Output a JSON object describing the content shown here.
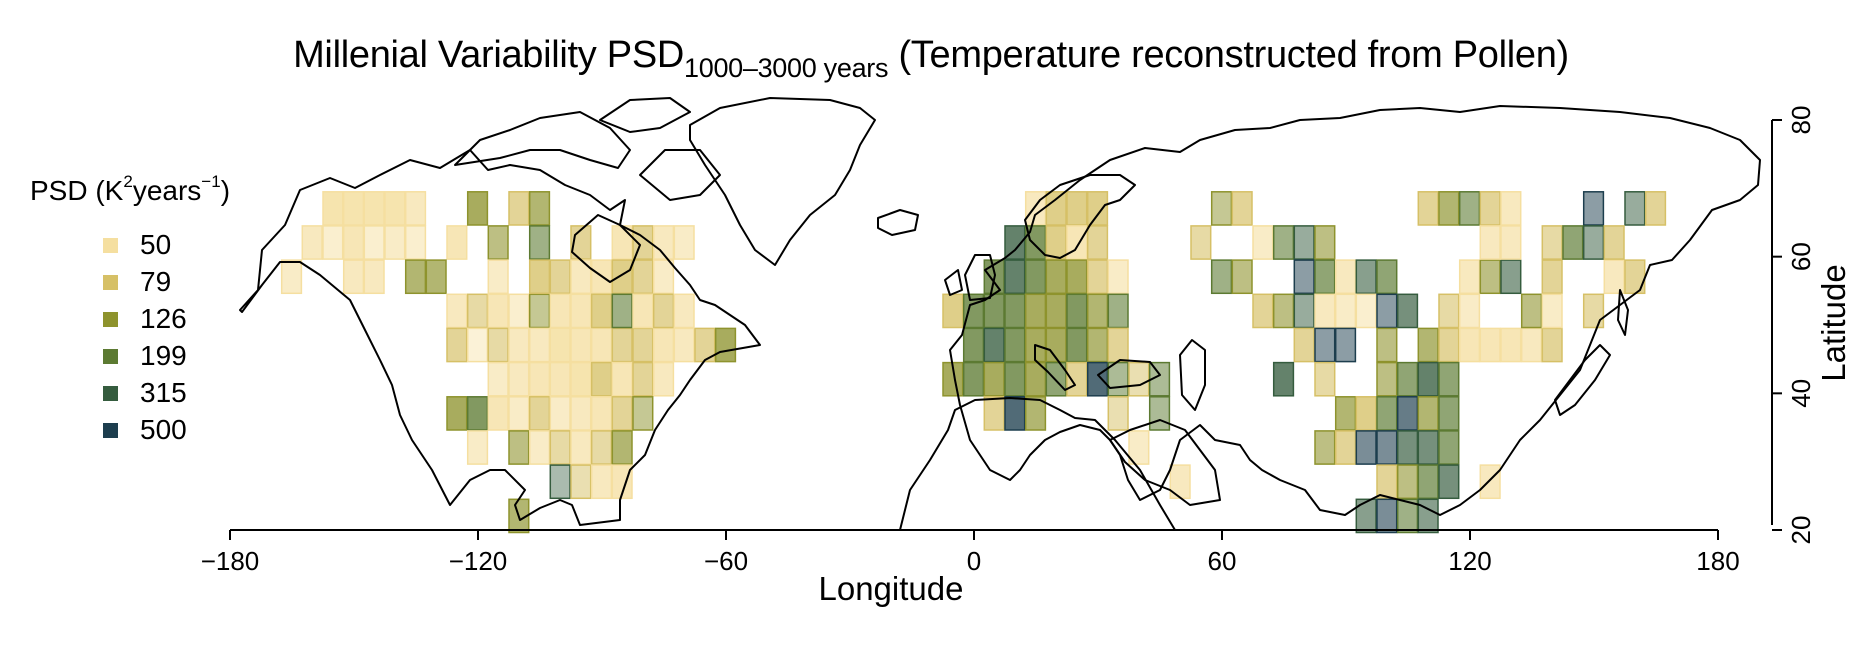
{
  "title": {
    "main": "Millenial Variability PSD",
    "subscript": "1000–3000 years",
    "suffix": "(Temperature reconstructed from Pollen)"
  },
  "legend": {
    "title_pre": "PSD (K",
    "title_sup1": "2",
    "title_mid": "years",
    "title_sup2": "−1",
    "title_post": ")",
    "items": [
      {
        "label": "50",
        "color": "#F5DFA0"
      },
      {
        "label": "79",
        "color": "#D6C066"
      },
      {
        "label": "126",
        "color": "#8E932D"
      },
      {
        "label": "199",
        "color": "#5C7A32"
      },
      {
        "label": "315",
        "color": "#355C3E"
      },
      {
        "label": "500",
        "color": "#1D3E4E"
      }
    ]
  },
  "axes": {
    "xlabel": "Longitude",
    "ylabel": "Latitude",
    "xticks": [
      "−180",
      "−120",
      "−60",
      "0",
      "60",
      "120",
      "180"
    ],
    "yticks": [
      "20",
      "40",
      "60",
      "80"
    ]
  },
  "map_data": {
    "projection": "equirectangular",
    "xlim": [
      -180,
      180
    ],
    "ylim": [
      20,
      80
    ],
    "cell_size_deg": 5,
    "colors": [
      "#F5DFA0",
      "#D6C066",
      "#8E932D",
      "#5C7A32",
      "#355C3E",
      "#1D3E4E"
    ],
    "cells": [
      [
        -155,
        67,
        0,
        1
      ],
      [
        -150,
        67,
        0,
        1
      ],
      [
        -145,
        67,
        0,
        1
      ],
      [
        -140,
        67,
        0,
        1
      ],
      [
        -135,
        67,
        0,
        0.8
      ],
      [
        -160,
        62,
        0,
        0.8
      ],
      [
        -155,
        62,
        0,
        0.6
      ],
      [
        -150,
        62,
        0,
        0.9
      ],
      [
        -145,
        62,
        0,
        0.6
      ],
      [
        -140,
        62,
        0,
        0.7
      ],
      [
        -135,
        62,
        0,
        0.6
      ],
      [
        -125,
        62,
        0,
        0.9
      ],
      [
        -165,
        57,
        0,
        0.7
      ],
      [
        -150,
        57,
        0,
        0.8
      ],
      [
        -145,
        57,
        0,
        0.8
      ],
      [
        -135,
        57,
        2,
        0.8
      ],
      [
        -130,
        57,
        2,
        0.8
      ],
      [
        -125,
        52,
        0,
        0.8
      ],
      [
        -120,
        52,
        1,
        0.7
      ],
      [
        -115,
        52,
        0,
        0.9
      ],
      [
        -110,
        52,
        0,
        0.6
      ],
      [
        -105,
        52,
        2,
        0.6
      ],
      [
        -125,
        47,
        1,
        0.8
      ],
      [
        -120,
        47,
        0,
        0.5
      ],
      [
        -115,
        47,
        1,
        0.7
      ],
      [
        -110,
        47,
        0,
        0.8
      ],
      [
        -105,
        47,
        0,
        0.8
      ],
      [
        -100,
        47,
        0,
        1
      ],
      [
        -95,
        47,
        0,
        0.9
      ],
      [
        -90,
        47,
        0,
        0.9
      ],
      [
        -85,
        47,
        1,
        0.8
      ],
      [
        -80,
        47,
        1,
        0.8
      ],
      [
        -75,
        47,
        0,
        0.9
      ],
      [
        -70,
        47,
        0,
        0.8
      ],
      [
        -65,
        47,
        1,
        0.8
      ],
      [
        -60,
        47,
        2,
        0.9
      ],
      [
        -115,
        42,
        0,
        0.7
      ],
      [
        -110,
        42,
        0,
        0.8
      ],
      [
        -105,
        42,
        0,
        0.9
      ],
      [
        -100,
        42,
        0,
        0.9
      ],
      [
        -95,
        42,
        0,
        1
      ],
      [
        -90,
        42,
        1,
        0.9
      ],
      [
        -85,
        42,
        0,
        0.9
      ],
      [
        -80,
        42,
        1,
        0.8
      ],
      [
        -75,
        42,
        0,
        0.8
      ],
      [
        -125,
        37,
        2,
        0.9
      ],
      [
        -120,
        37,
        3,
        0.9
      ],
      [
        -115,
        37,
        0,
        0.9
      ],
      [
        -110,
        37,
        0,
        0.7
      ],
      [
        -105,
        37,
        1,
        0.8
      ],
      [
        -100,
        37,
        0,
        0.7
      ],
      [
        -95,
        37,
        0,
        0.8
      ],
      [
        -90,
        37,
        0,
        0.9
      ],
      [
        -85,
        37,
        1,
        0.8
      ],
      [
        -80,
        37,
        2,
        0.6
      ],
      [
        -120,
        32,
        0,
        0.7
      ],
      [
        -110,
        32,
        2,
        0.7
      ],
      [
        -105,
        32,
        0,
        0.7
      ],
      [
        -100,
        32,
        1,
        0.7
      ],
      [
        -95,
        32,
        0,
        0.8
      ],
      [
        -90,
        32,
        1,
        0.7
      ],
      [
        -85,
        32,
        2,
        0.8
      ],
      [
        -100,
        27,
        4,
        0.5
      ],
      [
        -95,
        27,
        1,
        0.6
      ],
      [
        -90,
        27,
        0,
        0.8
      ],
      [
        -85,
        27,
        0,
        0.9
      ],
      [
        -110,
        22,
        2,
        0.8
      ],
      [
        -120,
        67,
        2,
        0.9
      ],
      [
        -110,
        67,
        1,
        0.8
      ],
      [
        -105,
        67,
        2,
        0.8
      ],
      [
        -115,
        62,
        2,
        0.7
      ],
      [
        -105,
        62,
        3,
        0.7
      ],
      [
        -95,
        62,
        1,
        0.8
      ],
      [
        -85,
        62,
        0,
        0.9
      ],
      [
        -80,
        62,
        1,
        0.8
      ],
      [
        -75,
        62,
        0,
        0.8
      ],
      [
        -70,
        62,
        0,
        0.7
      ],
      [
        -115,
        57,
        0,
        0.7
      ],
      [
        -105,
        57,
        1,
        0.9
      ],
      [
        -100,
        57,
        1,
        0.8
      ],
      [
        -95,
        57,
        0,
        0.8
      ],
      [
        -90,
        57,
        0,
        0.9
      ],
      [
        -85,
        57,
        1,
        0.9
      ],
      [
        -80,
        57,
        1,
        0.8
      ],
      [
        -75,
        57,
        0,
        0.7
      ],
      [
        -100,
        52,
        0,
        0.9
      ],
      [
        -95,
        52,
        0,
        0.9
      ],
      [
        -90,
        52,
        1,
        0.9
      ],
      [
        -85,
        52,
        3,
        0.7
      ],
      [
        -80,
        52,
        0,
        0.9
      ],
      [
        -75,
        52,
        1,
        0.8
      ],
      [
        -70,
        52,
        0,
        0.8
      ],
      [
        15,
        67,
        0,
        0.8
      ],
      [
        20,
        67,
        1,
        0.9
      ],
      [
        25,
        67,
        1,
        0.9
      ],
      [
        30,
        67,
        1,
        0.9
      ],
      [
        10,
        62,
        4,
        0.9
      ],
      [
        15,
        62,
        3,
        0.9
      ],
      [
        20,
        62,
        1,
        0.9
      ],
      [
        25,
        62,
        0,
        0.9
      ],
      [
        30,
        62,
        1,
        0.8
      ],
      [
        5,
        57,
        3,
        0.9
      ],
      [
        10,
        57,
        4,
        0.9
      ],
      [
        15,
        57,
        3,
        0.9
      ],
      [
        20,
        57,
        2,
        0.9
      ],
      [
        25,
        57,
        2,
        0.9
      ],
      [
        30,
        57,
        1,
        0.8
      ],
      [
        35,
        57,
        0,
        0.7
      ],
      [
        -5,
        52,
        1,
        0.9
      ],
      [
        0,
        52,
        3,
        0.9
      ],
      [
        5,
        52,
        3,
        0.9
      ],
      [
        10,
        52,
        3,
        0.9
      ],
      [
        15,
        52,
        2,
        0.9
      ],
      [
        20,
        52,
        2,
        0.9
      ],
      [
        25,
        52,
        3,
        0.9
      ],
      [
        30,
        52,
        2,
        0.8
      ],
      [
        35,
        52,
        3,
        0.7
      ],
      [
        0,
        47,
        3,
        0.9
      ],
      [
        5,
        47,
        4,
        0.9
      ],
      [
        10,
        47,
        3,
        0.9
      ],
      [
        15,
        47,
        2,
        0.9
      ],
      [
        20,
        47,
        2,
        0.9
      ],
      [
        25,
        47,
        3,
        0.9
      ],
      [
        30,
        47,
        2,
        0.8
      ],
      [
        35,
        47,
        1,
        0.8
      ],
      [
        -5,
        42,
        2,
        0.9
      ],
      [
        0,
        42,
        3,
        0.9
      ],
      [
        5,
        42,
        2,
        0.9
      ],
      [
        10,
        42,
        3,
        0.9
      ],
      [
        15,
        42,
        2,
        0.9
      ],
      [
        20,
        42,
        3,
        0.8
      ],
      [
        25,
        42,
        1,
        0.8
      ],
      [
        30,
        42,
        5,
        0.9
      ],
      [
        35,
        42,
        3,
        0.6
      ],
      [
        40,
        42,
        1,
        0.6
      ],
      [
        45,
        42,
        3,
        0.6
      ],
      [
        5,
        37,
        1,
        0.8
      ],
      [
        10,
        37,
        5,
        0.9
      ],
      [
        15,
        37,
        2,
        0.8
      ],
      [
        35,
        37,
        1,
        0.6
      ],
      [
        45,
        37,
        3,
        0.6
      ],
      [
        40,
        32,
        0,
        0.7
      ],
      [
        50,
        27,
        0,
        0.8
      ],
      [
        55,
        62,
        1,
        0.7
      ],
      [
        60,
        67,
        2,
        0.6
      ],
      [
        65,
        67,
        1,
        0.8
      ],
      [
        70,
        62,
        0,
        0.7
      ],
      [
        75,
        62,
        3,
        0.7
      ],
      [
        80,
        62,
        4,
        0.6
      ],
      [
        85,
        62,
        2,
        0.7
      ],
      [
        60,
        57,
        3,
        0.7
      ],
      [
        65,
        57,
        2,
        0.7
      ],
      [
        80,
        57,
        5,
        0.6
      ],
      [
        85,
        57,
        3,
        0.8
      ],
      [
        90,
        57,
        0,
        0.8
      ],
      [
        95,
        57,
        4,
        0.7
      ],
      [
        100,
        57,
        3,
        0.8
      ],
      [
        70,
        52,
        1,
        0.8
      ],
      [
        75,
        52,
        2,
        0.7
      ],
      [
        80,
        52,
        4,
        0.6
      ],
      [
        85,
        52,
        0,
        0.8
      ],
      [
        90,
        52,
        0,
        0.7
      ],
      [
        95,
        52,
        0,
        0.6
      ],
      [
        100,
        52,
        5,
        0.6
      ],
      [
        105,
        52,
        4,
        0.8
      ],
      [
        80,
        47,
        1,
        0.8
      ],
      [
        85,
        47,
        5,
        0.6
      ],
      [
        90,
        47,
        5,
        0.6
      ],
      [
        100,
        47,
        2,
        0.7
      ],
      [
        110,
        47,
        2,
        0.8
      ],
      [
        115,
        47,
        1,
        0.8
      ],
      [
        120,
        47,
        0,
        0.9
      ],
      [
        125,
        47,
        0,
        0.9
      ],
      [
        130,
        47,
        0,
        0.9
      ],
      [
        135,
        47,
        0,
        0.8
      ],
      [
        140,
        47,
        1,
        0.8
      ],
      [
        75,
        42,
        4,
        0.9
      ],
      [
        85,
        42,
        1,
        0.7
      ],
      [
        100,
        42,
        2,
        0.7
      ],
      [
        105,
        42,
        3,
        0.8
      ],
      [
        110,
        42,
        4,
        0.9
      ],
      [
        115,
        42,
        3,
        0.8
      ],
      [
        90,
        37,
        2,
        0.8
      ],
      [
        95,
        37,
        1,
        0.9
      ],
      [
        100,
        37,
        3,
        0.8
      ],
      [
        105,
        37,
        5,
        0.8
      ],
      [
        110,
        37,
        2,
        0.8
      ],
      [
        115,
        37,
        3,
        0.8
      ],
      [
        85,
        32,
        2,
        0.7
      ],
      [
        90,
        32,
        1,
        0.8
      ],
      [
        95,
        32,
        5,
        0.7
      ],
      [
        100,
        32,
        5,
        0.7
      ],
      [
        105,
        32,
        4,
        0.8
      ],
      [
        110,
        32,
        4,
        0.8
      ],
      [
        115,
        32,
        3,
        0.8
      ],
      [
        100,
        27,
        1,
        0.8
      ],
      [
        105,
        27,
        2,
        0.7
      ],
      [
        110,
        27,
        3,
        0.8
      ],
      [
        115,
        27,
        4,
        0.8
      ],
      [
        125,
        27,
        0,
        0.8
      ],
      [
        95,
        22,
        4,
        0.7
      ],
      [
        100,
        22,
        5,
        0.7
      ],
      [
        105,
        22,
        3,
        0.7
      ],
      [
        110,
        22,
        4,
        0.7
      ],
      [
        110,
        67,
        1,
        0.8
      ],
      [
        115,
        67,
        2,
        0.8
      ],
      [
        120,
        67,
        3,
        0.7
      ],
      [
        125,
        67,
        1,
        0.8
      ],
      [
        130,
        67,
        0,
        0.8
      ],
      [
        150,
        67,
        5,
        0.6
      ],
      [
        160,
        67,
        4,
        0.6
      ],
      [
        165,
        67,
        1,
        0.8
      ],
      [
        120,
        57,
        0,
        0.8
      ],
      [
        125,
        57,
        2,
        0.7
      ],
      [
        130,
        57,
        4,
        0.7
      ],
      [
        140,
        57,
        1,
        0.8
      ],
      [
        155,
        57,
        0,
        0.8
      ],
      [
        160,
        57,
        1,
        0.8
      ],
      [
        115,
        52,
        1,
        0.7
      ],
      [
        120,
        52,
        0,
        0.7
      ],
      [
        135,
        52,
        2,
        0.7
      ],
      [
        140,
        52,
        0,
        0.7
      ],
      [
        150,
        52,
        1,
        0.7
      ],
      [
        125,
        62,
        0,
        0.8
      ],
      [
        130,
        62,
        0,
        0.8
      ],
      [
        140,
        62,
        1,
        0.7
      ],
      [
        145,
        62,
        3,
        0.8
      ],
      [
        150,
        62,
        4,
        0.6
      ],
      [
        155,
        62,
        1,
        0.8
      ]
    ]
  }
}
